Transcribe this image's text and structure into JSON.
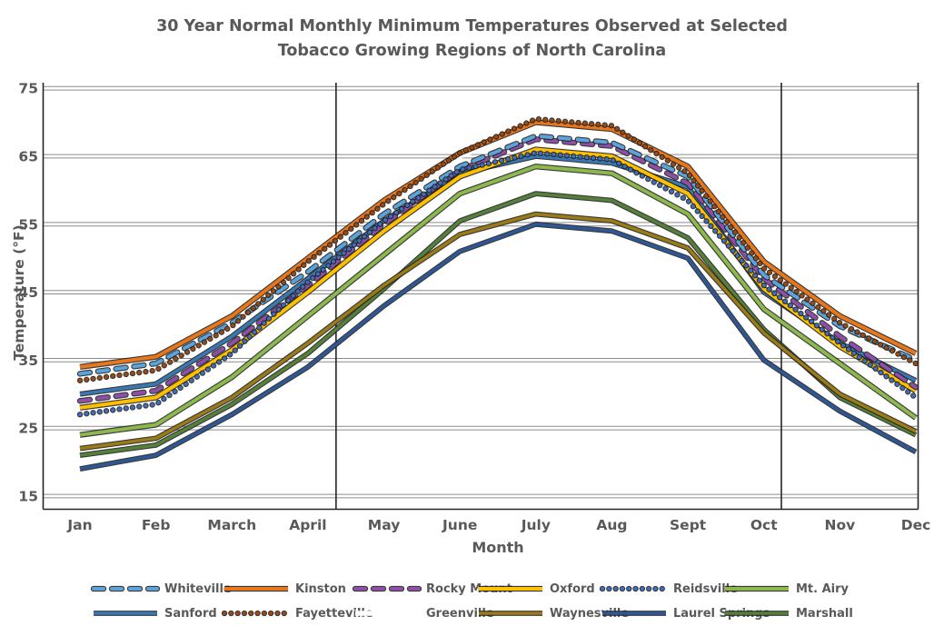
{
  "title": "30 Year Normal Monthly Minimum Temperatures Observed at Selected Tobacco Growing Regions of North Carolina",
  "axes": {
    "x_label": "Month",
    "y_label": "Temperature (°F)",
    "y_ticks": [
      15,
      25,
      35,
      45,
      55,
      65,
      75
    ],
    "months": [
      "Jan",
      "Feb",
      "March",
      "April",
      "May",
      "June",
      "July",
      "Aug",
      "Sept",
      "Oct",
      "Nov",
      "Dec"
    ]
  },
  "colors": {
    "text": "#595959",
    "axis_line": "#262626",
    "gridline": "#8c8c8c",
    "line_outline": "#1f1f1f",
    "background": "#ffffff"
  },
  "chart_data": {
    "type": "line",
    "title": "30 Year Normal Monthly Minimum Temperatures Observed at Selected Tobacco Growing Regions of North Carolina",
    "xlabel": "Month",
    "ylabel": "Temperature (°F)",
    "categories": [
      "Jan",
      "Feb",
      "March",
      "April",
      "May",
      "June",
      "July",
      "Aug",
      "Sept",
      "Oct",
      "Nov",
      "Dec"
    ],
    "ylim": [
      15,
      75
    ],
    "grid": "horizontal-double-lines",
    "vertical_gridlines_month_units": [
      3.37,
      9.23
    ],
    "legend_position": "bottom",
    "series": [
      {
        "name": "Whiteville",
        "color": "#5BA3D9",
        "style": "dash",
        "width": 4,
        "values": [
          33,
          34.5,
          40.5,
          48,
          56.5,
          63.5,
          68,
          67,
          62,
          47.5,
          40,
          35
        ]
      },
      {
        "name": "Kinston",
        "color": "#E8761B",
        "style": "solid",
        "width": 4,
        "values": [
          34,
          35.5,
          41.5,
          50,
          58.5,
          65.5,
          70,
          69,
          63.5,
          49.5,
          41.5,
          36
        ]
      },
      {
        "name": "Rocky Mount",
        "color": "#8E4FA8",
        "style": "dash",
        "width": 4,
        "values": [
          29,
          30.5,
          37.5,
          46,
          55,
          63,
          67.5,
          66.5,
          61,
          47,
          38.5,
          31
        ]
      },
      {
        "name": "Oxford",
        "color": "#FFC000",
        "style": "solid",
        "width": 4,
        "values": [
          28,
          29.5,
          36.5,
          45,
          54,
          62,
          66,
          65,
          59.5,
          45.5,
          37,
          30.5
        ]
      },
      {
        "name": "Reidsville",
        "color": "#3E6FBF",
        "style": "dot",
        "width": 4,
        "values": [
          27,
          28.5,
          36,
          46.5,
          55.5,
          63,
          65.5,
          64.5,
          58.5,
          46,
          37.5,
          29.5
        ]
      },
      {
        "name": "Mt. Airy",
        "color": "#8DB84E",
        "style": "solid",
        "width": 4,
        "values": [
          24,
          25.5,
          32.5,
          41.5,
          50.5,
          59.5,
          63.5,
          62.5,
          56.5,
          42.5,
          34.5,
          26.5
        ]
      },
      {
        "name": "Sanford",
        "color": "#3879B5",
        "style": "solid",
        "width": 3.5,
        "values": [
          30,
          31.5,
          38.5,
          47,
          55.5,
          62.5,
          65,
          64,
          60.5,
          45,
          37.5,
          32
        ]
      },
      {
        "name": "Fayetteville",
        "color": "#9C4A0F",
        "style": "dot",
        "width": 4,
        "values": [
          32,
          33.5,
          40,
          49.5,
          58,
          65.5,
          70.5,
          69.5,
          62.5,
          48.5,
          40.5,
          34.5
        ]
      },
      {
        "name": "Greenville",
        "color": "#FFFFFF",
        "style": "solid",
        "width": 3.5,
        "values": [
          33.5,
          35,
          41,
          49.5,
          58,
          65,
          69.5,
          68.5,
          63,
          49,
          41,
          35.5
        ]
      },
      {
        "name": "Waynesville",
        "color": "#9A7B16",
        "style": "solid",
        "width": 3.5,
        "values": [
          22,
          23.5,
          29.5,
          37.5,
          46,
          53.5,
          56.5,
          55.5,
          51.5,
          39,
          30,
          24.5
        ]
      },
      {
        "name": "Laurel Springs",
        "color": "#2E5796",
        "style": "solid",
        "width": 3.5,
        "values": [
          19,
          21,
          27,
          34,
          43,
          51,
          55,
          54,
          50,
          35,
          27.5,
          21.5
        ]
      },
      {
        "name": "Marshall",
        "color": "#55803A",
        "style": "solid",
        "width": 3.5,
        "values": [
          21,
          22.5,
          28.5,
          36,
          45.5,
          55.5,
          59.5,
          58.5,
          53,
          39.5,
          29.5,
          24
        ]
      }
    ]
  },
  "legend": {
    "rows": [
      [
        "Whiteville",
        "Kinston",
        "Rocky Mount",
        "Oxford",
        "Reidsville",
        "Mt. Airy"
      ],
      [
        "Sanford",
        "Fayetteville",
        "Greenville",
        "Waynesville",
        "Laurel Springs",
        "Marshall"
      ]
    ]
  }
}
